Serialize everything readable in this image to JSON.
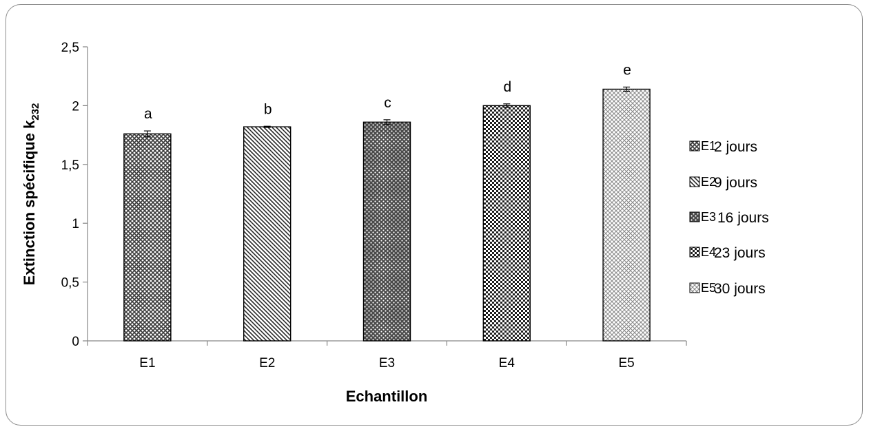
{
  "chart_data": {
    "type": "bar",
    "categories": [
      "E1",
      "E2",
      "E3",
      "E4",
      "E5"
    ],
    "values": [
      1.76,
      1.82,
      1.86,
      2.0,
      2.14
    ],
    "errors": [
      0.025,
      0.005,
      0.02,
      0.015,
      0.018
    ],
    "significance_letters": [
      "a",
      "b",
      "c",
      "d",
      "e"
    ],
    "xlabel": "Echantillon",
    "ylabel": "Extinction spécifique k",
    "ylabel_subscript": "232",
    "ylim": [
      0,
      2.5
    ],
    "yticks": [
      0,
      0.5,
      1,
      1.5,
      2,
      2.5
    ],
    "ytick_labels": [
      "0",
      "0,5",
      "1",
      "1,5",
      "2",
      "2,5"
    ],
    "grid": false,
    "legend_position": "right",
    "legend": [
      {
        "code": "E1",
        "label": "2 jours"
      },
      {
        "code": "E2",
        "label": "9 jours"
      },
      {
        "code": "E3",
        "label": "16 jours"
      },
      {
        "code": "E4",
        "label": "23 jours"
      },
      {
        "code": "E5",
        "label": "30 jours"
      }
    ],
    "colors": {
      "bar_outline": "#000000",
      "axis": "#868686",
      "pattern_e1": "#3a3a3a",
      "pattern_e2": "#2a2a2a",
      "pattern_e3": "#4a4a4a",
      "pattern_e4": "#1e1e1e",
      "pattern_e5": "#8a8a8a"
    }
  }
}
